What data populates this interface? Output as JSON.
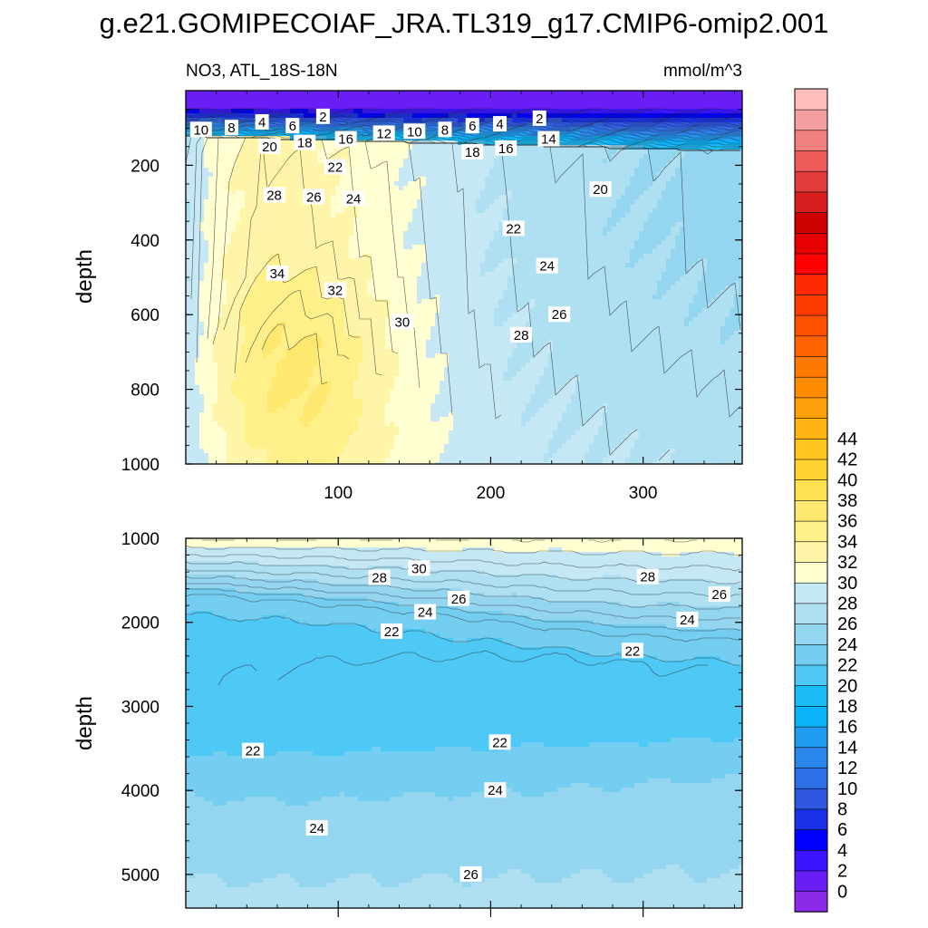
{
  "chart_data": {
    "type": "contour",
    "title": "g.e21.GOMIPECOIAF_JRA.TL319_g17.CMIP6-omip2.001",
    "variable_label": "NO3, ATL_18S-18N",
    "units": "mmol/m^3",
    "colors": [
      "#8a2ae6",
      "#6a1ef5",
      "#3c14ff",
      "#0000ff",
      "#1a32e6",
      "#2e56e0",
      "#2e6ee6",
      "#2a86ea",
      "#1f9cf0",
      "#0ab4fa",
      "#1abcf5",
      "#4ec8f5",
      "#74cef2",
      "#94d6f0",
      "#aee0f2",
      "#c6e8f5",
      "#ffffd2",
      "#fff5a8",
      "#fff08a",
      "#ffe870",
      "#ffe050",
      "#ffd232",
      "#ffc41e",
      "#ffb414",
      "#ffa00a",
      "#ff8c00",
      "#ff7800",
      "#ff6400",
      "#ff5000",
      "#ff3c00",
      "#ff2800",
      "#ff0000",
      "#e60000",
      "#cd0000",
      "#d81e1e",
      "#e23c3c",
      "#ec5a5a",
      "#f08080",
      "#f5a0a0",
      "#ffbebe"
    ],
    "colorbar": {
      "min": 0,
      "max": 46,
      "step": 2,
      "tick_labels": [
        "0",
        "2",
        "4",
        "6",
        "8",
        "10",
        "12",
        "14",
        "16",
        "18",
        "20",
        "22",
        "24",
        "26",
        "28",
        "30",
        "32",
        "34",
        "36",
        "38",
        "40",
        "42",
        "44"
      ]
    },
    "panels": [
      {
        "ylabel": "depth",
        "ylim": [
          0,
          1000
        ],
        "y_ticks": [
          "200",
          "400",
          "600",
          "800",
          "1000"
        ],
        "x_ticks": [
          "100",
          "200",
          "300"
        ],
        "xlim": [
          0,
          365
        ],
        "contour_labels": [
          {
            "text": "10",
            "x": 10,
            "y": 105
          },
          {
            "text": "8",
            "x": 30,
            "y": 100
          },
          {
            "text": "4",
            "x": 50,
            "y": 85
          },
          {
            "text": "6",
            "x": 70,
            "y": 95
          },
          {
            "text": "2",
            "x": 90,
            "y": 70
          },
          {
            "text": "12",
            "x": 130,
            "y": 115
          },
          {
            "text": "10",
            "x": 150,
            "y": 110
          },
          {
            "text": "8",
            "x": 170,
            "y": 105
          },
          {
            "text": "6",
            "x": 188,
            "y": 95
          },
          {
            "text": "4",
            "x": 206,
            "y": 90
          },
          {
            "text": "2",
            "x": 232,
            "y": 75
          },
          {
            "text": "20",
            "x": 55,
            "y": 150
          },
          {
            "text": "18",
            "x": 78,
            "y": 140
          },
          {
            "text": "16",
            "x": 105,
            "y": 130
          },
          {
            "text": "18",
            "x": 188,
            "y": 165
          },
          {
            "text": "16",
            "x": 210,
            "y": 155
          },
          {
            "text": "14",
            "x": 238,
            "y": 130
          },
          {
            "text": "22",
            "x": 98,
            "y": 205
          },
          {
            "text": "28",
            "x": 58,
            "y": 280
          },
          {
            "text": "26",
            "x": 84,
            "y": 285
          },
          {
            "text": "24",
            "x": 110,
            "y": 290
          },
          {
            "text": "20",
            "x": 272,
            "y": 265
          },
          {
            "text": "22",
            "x": 215,
            "y": 370
          },
          {
            "text": "34",
            "x": 60,
            "y": 490
          },
          {
            "text": "32",
            "x": 98,
            "y": 535
          },
          {
            "text": "30",
            "x": 142,
            "y": 620
          },
          {
            "text": "24",
            "x": 237,
            "y": 470
          },
          {
            "text": "26",
            "x": 245,
            "y": 600
          },
          {
            "text": "28",
            "x": 220,
            "y": 655
          }
        ]
      },
      {
        "ylabel": "depth",
        "ylim": [
          1000,
          5400
        ],
        "y_ticks": [
          "1000",
          "2000",
          "3000",
          "4000",
          "5000"
        ],
        "xlim": [
          0,
          365
        ],
        "contour_labels": [
          {
            "text": "30",
            "x": 153,
            "y": 1360
          },
          {
            "text": "28",
            "x": 127,
            "y": 1470
          },
          {
            "text": "28",
            "x": 303,
            "y": 1460
          },
          {
            "text": "26",
            "x": 179,
            "y": 1720
          },
          {
            "text": "26",
            "x": 350,
            "y": 1670
          },
          {
            "text": "24",
            "x": 157,
            "y": 1880
          },
          {
            "text": "24",
            "x": 329,
            "y": 1970
          },
          {
            "text": "22",
            "x": 135,
            "y": 2110
          },
          {
            "text": "22",
            "x": 293,
            "y": 2340
          },
          {
            "text": "22",
            "x": 44,
            "y": 3530
          },
          {
            "text": "22",
            "x": 206,
            "y": 3430
          },
          {
            "text": "24",
            "x": 203,
            "y": 4000
          },
          {
            "text": "24",
            "x": 86,
            "y": 4450
          },
          {
            "text": "26",
            "x": 187,
            "y": 5000
          }
        ]
      }
    ]
  }
}
